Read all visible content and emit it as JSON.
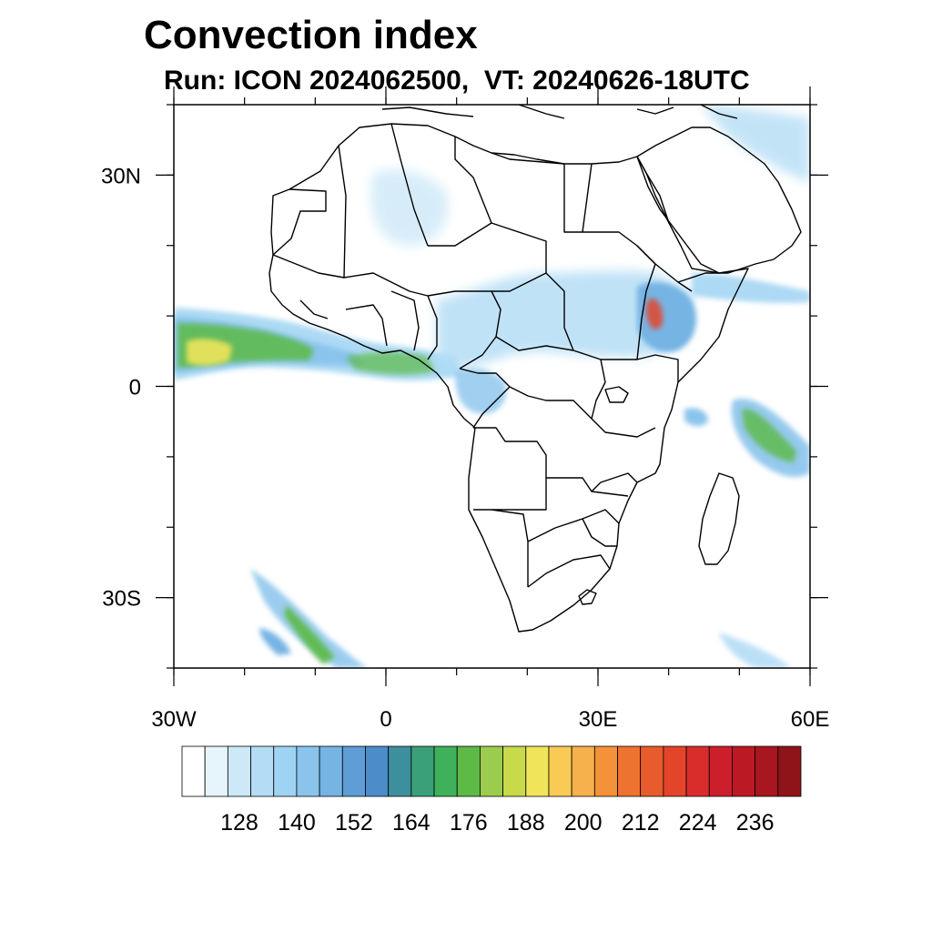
{
  "title": "Convection index",
  "subtitle": "Run: ICON 2024062500,  VT: 20240626-18UTC",
  "map": {
    "lon_range": [
      -30,
      60
    ],
    "lat_range": [
      -40,
      40
    ],
    "x_ticks": [
      {
        "value": -30,
        "label": "30W"
      },
      {
        "value": 0,
        "label": "0"
      },
      {
        "value": 30,
        "label": "30E"
      },
      {
        "value": 60,
        "label": "60E"
      }
    ],
    "y_ticks": [
      {
        "value": 30,
        "label": "30N"
      },
      {
        "value": 0,
        "label": "0"
      },
      {
        "value": -30,
        "label": "30S"
      }
    ],
    "coastline_color": "#000000"
  },
  "colorbar": {
    "colors": [
      "#ffffff",
      "#e6f4fc",
      "#cde9f8",
      "#b4ddf5",
      "#9fd3f3",
      "#8ac4ec",
      "#76b4e4",
      "#5e9dd6",
      "#4c8cc9",
      "#3d8f9e",
      "#3aa079",
      "#3fb15b",
      "#5cba45",
      "#9ccc4e",
      "#c8d94a",
      "#f0e55a",
      "#f9cb55",
      "#f6b04c",
      "#f39238",
      "#ee7230",
      "#e85b2c",
      "#e3452a",
      "#d92d2b",
      "#cc1f2b",
      "#bb1a25",
      "#a8161f",
      "#8e141a"
    ],
    "labels": [
      "128",
      "140",
      "152",
      "164",
      "176",
      "188",
      "200",
      "212",
      "224",
      "236"
    ]
  }
}
